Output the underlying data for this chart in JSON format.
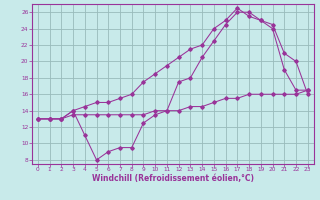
{
  "title": "",
  "xlabel": "Windchill (Refroidissement éolien,°C)",
  "ylabel": "",
  "bg_color": "#c8eaea",
  "line_color": "#993399",
  "grid_color": "#99bbbb",
  "xlim": [
    -0.5,
    23.5
  ],
  "ylim": [
    7.5,
    27
  ],
  "xticks": [
    0,
    1,
    2,
    3,
    4,
    5,
    6,
    7,
    8,
    9,
    10,
    11,
    12,
    13,
    14,
    15,
    16,
    17,
    18,
    19,
    20,
    21,
    22,
    23
  ],
  "yticks": [
    8,
    10,
    12,
    14,
    16,
    18,
    20,
    22,
    24,
    26
  ],
  "line1_x": [
    0,
    1,
    2,
    3,
    4,
    5,
    6,
    7,
    8,
    9,
    10,
    11,
    12,
    13,
    14,
    15,
    16,
    17,
    18,
    19,
    20,
    21,
    22,
    23
  ],
  "line1_y": [
    13,
    13,
    13,
    13.5,
    13.5,
    13.5,
    13.5,
    13.5,
    13.5,
    13.5,
    14,
    14,
    14,
    14.5,
    14.5,
    15,
    15.5,
    15.5,
    16,
    16,
    16,
    16,
    16,
    16.5
  ],
  "line2_x": [
    0,
    1,
    2,
    3,
    4,
    5,
    6,
    7,
    8,
    9,
    10,
    11,
    12,
    13,
    14,
    15,
    16,
    17,
    18,
    19,
    20,
    21,
    22,
    23
  ],
  "line2_y": [
    13,
    13,
    13,
    14,
    11,
    8,
    9,
    9.5,
    9.5,
    12.5,
    13.5,
    14,
    17.5,
    18,
    20.5,
    22.5,
    24.5,
    26,
    26,
    25,
    24,
    19,
    16.5,
    16.5
  ],
  "line3_x": [
    0,
    1,
    2,
    3,
    4,
    5,
    6,
    7,
    8,
    9,
    10,
    11,
    12,
    13,
    14,
    15,
    16,
    17,
    18,
    19,
    20,
    21,
    22,
    23
  ],
  "line3_y": [
    13,
    13,
    13,
    14,
    14.5,
    15,
    15,
    15.5,
    16,
    17.5,
    18.5,
    19.5,
    20.5,
    21.5,
    22,
    24,
    25,
    26.5,
    25.5,
    25,
    24.5,
    21,
    20,
    16
  ]
}
